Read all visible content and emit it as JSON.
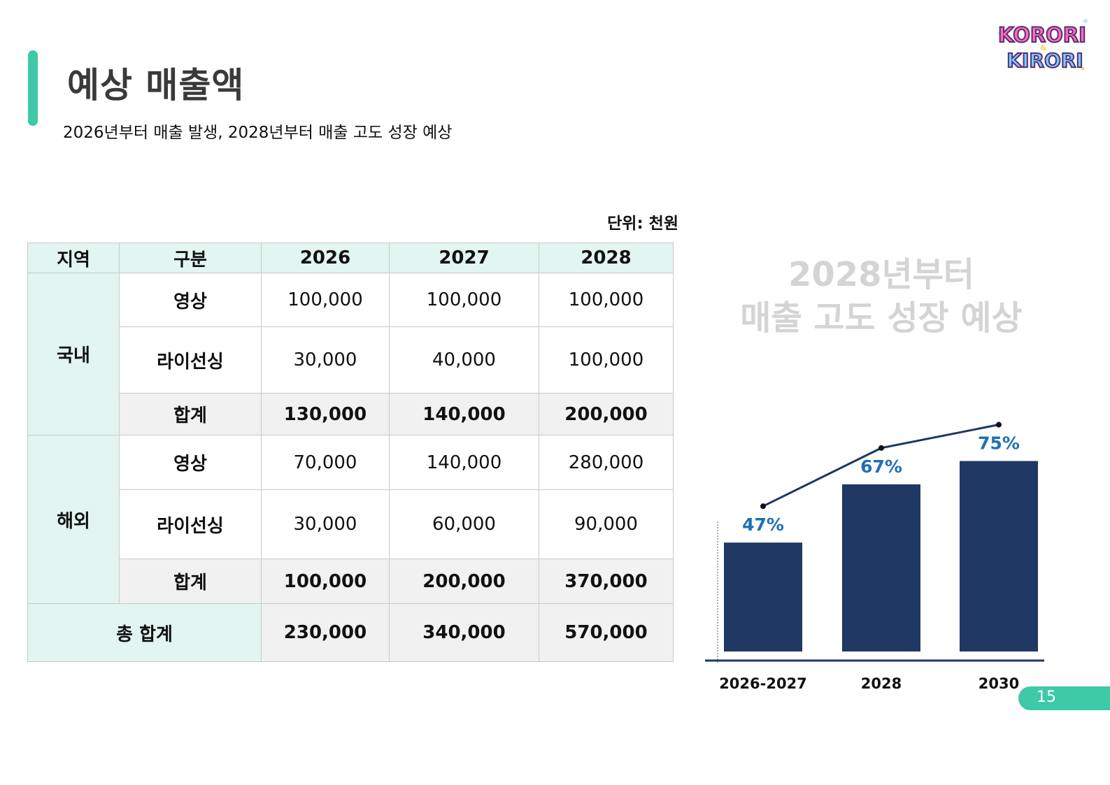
{
  "header": {
    "title": "예상 매출액",
    "subtitle": "2026년부터 매출 발생, 2028년부터 매출 고도 성장 예상"
  },
  "logo": {
    "line1": "KORORI",
    "amp": "&",
    "line2": "KIRORI"
  },
  "table": {
    "unit_label": "단위: 천원",
    "headers": [
      "지역",
      "구분",
      "2026",
      "2027",
      "2028"
    ],
    "domestic": {
      "region": "국내",
      "rows": [
        {
          "label": "영상",
          "values": [
            "100,000",
            "100,000",
            "100,000"
          ]
        },
        {
          "label": "라이선싱",
          "values": [
            "30,000",
            "40,000",
            "100,000"
          ]
        },
        {
          "label": "합계",
          "values": [
            "130,000",
            "140,000",
            "200,000"
          ]
        }
      ]
    },
    "overseas": {
      "region": "해외",
      "rows": [
        {
          "label": "영상",
          "values": [
            "70,000",
            "140,000",
            "280,000"
          ]
        },
        {
          "label": "라이선싱",
          "values": [
            "30,000",
            "60,000",
            "90,000"
          ]
        },
        {
          "label": "합계",
          "values": [
            "100,000",
            "200,000",
            "370,000"
          ]
        }
      ]
    },
    "grand_total": {
      "label": "총 합계",
      "values": [
        "230,000",
        "340,000",
        "570,000"
      ]
    }
  },
  "callout": {
    "line1": "2028년부터",
    "line2": "매출 고도 성장 예상"
  },
  "chart_data": {
    "type": "bar",
    "categories": [
      "2026-2027",
      "2028",
      "2030"
    ],
    "values": [
      47,
      67,
      75
    ],
    "value_labels": [
      "47%",
      "67%",
      "75%"
    ],
    "trend_line": true,
    "bar_color": "#1f3864",
    "label_color": "#1f6fb5",
    "ylim": [
      0,
      100
    ]
  },
  "page": {
    "number": "15"
  },
  "colors": {
    "accent": "#3ec9a7",
    "header_bg": "#e2f5f0",
    "subtotal_bg": "#f1f1f1",
    "ghost_text": "#d4d4d4"
  }
}
